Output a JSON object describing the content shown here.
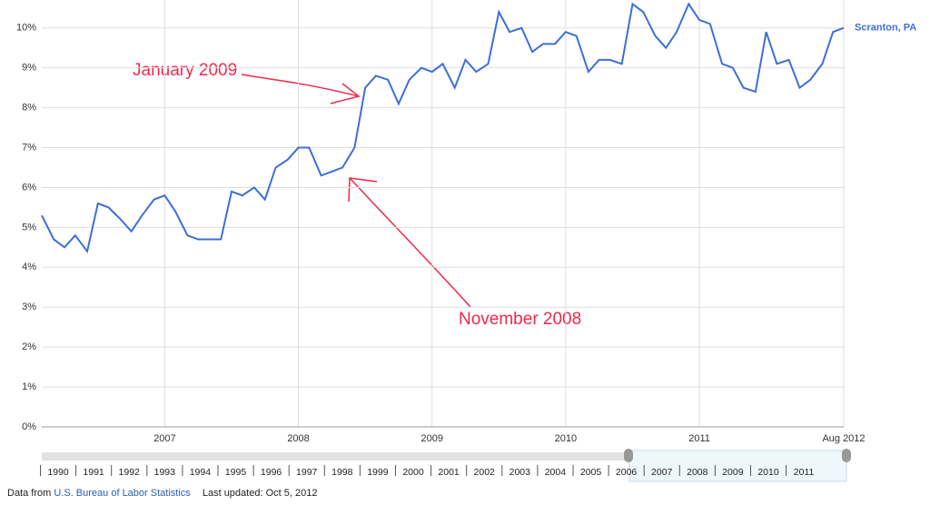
{
  "chart_data": {
    "type": "line",
    "x": [
      2006.08,
      2006.17,
      2006.25,
      2006.33,
      2006.42,
      2006.5,
      2006.58,
      2006.67,
      2006.75,
      2006.83,
      2006.92,
      2007,
      2007.08,
      2007.17,
      2007.25,
      2007.33,
      2007.42,
      2007.5,
      2007.58,
      2007.67,
      2007.75,
      2007.83,
      2007.92,
      2008,
      2008.08,
      2008.17,
      2008.25,
      2008.33,
      2008.42,
      2008.5,
      2008.58,
      2008.67,
      2008.75,
      2008.83,
      2008.92,
      2009,
      2009.08,
      2009.17,
      2009.25,
      2009.33,
      2009.42,
      2009.5,
      2009.58,
      2009.67,
      2009.75,
      2009.83,
      2009.92,
      2010,
      2010.08,
      2010.17,
      2010.25,
      2010.33,
      2010.42,
      2010.5,
      2010.58,
      2010.67,
      2010.75,
      2010.83,
      2010.92,
      2011,
      2011.08,
      2011.17,
      2011.25,
      2011.33,
      2011.42,
      2011.5,
      2011.58,
      2011.67,
      2011.75,
      2011.83,
      2011.92,
      2012,
      2012.08
    ],
    "series": [
      {
        "name": "Scranton, PA",
        "color": "#3d6fd6",
        "values": [
          5.3,
          4.7,
          4.5,
          4.8,
          4.4,
          5.6,
          5.5,
          5.2,
          4.9,
          5.3,
          5.7,
          5.8,
          5.4,
          4.8,
          4.7,
          4.7,
          4.7,
          5.9,
          5.8,
          6.0,
          5.7,
          6.5,
          6.7,
          7.0,
          7.0,
          6.3,
          6.4,
          6.5,
          7.0,
          8.5,
          8.8,
          8.7,
          8.1,
          8.7,
          9.0,
          8.9,
          9.1,
          8.5,
          9.2,
          8.9,
          9.1,
          10.4,
          9.9,
          10.0,
          9.4,
          9.6,
          9.6,
          9.9,
          9.8,
          8.9,
          9.2,
          9.2,
          9.1,
          10.6,
          10.4,
          9.8,
          9.5,
          9.9,
          10.6,
          10.2,
          10.1,
          9.1,
          9.0,
          8.5,
          8.4,
          9.9,
          9.1,
          9.2,
          8.5,
          8.7,
          9.1,
          9.9,
          10.0
        ]
      }
    ],
    "xlim": [
      2006.08,
      2012.08
    ],
    "xticks": [
      2007,
      2008,
      2009,
      2010,
      2011,
      {
        "value": 2012.08,
        "label": "Aug 2012"
      }
    ],
    "ylim": [
      0,
      10.7
    ],
    "yticks": [
      {
        "value": 0,
        "label": "0%"
      },
      {
        "value": 1,
        "label": "1%"
      },
      {
        "value": 2,
        "label": "2%"
      },
      {
        "value": 3,
        "label": "3%"
      },
      {
        "value": 4,
        "label": "4%"
      },
      {
        "value": 5,
        "label": "5%"
      },
      {
        "value": 6,
        "label": "6%"
      },
      {
        "value": 7,
        "label": "7%"
      },
      {
        "value": 8,
        "label": "8%"
      },
      {
        "value": 9,
        "label": "9%"
      },
      {
        "value": 10,
        "label": "10%"
      }
    ],
    "grid": true,
    "annotations": [
      "January 2009",
      "November 2008"
    ],
    "timeline_years": [
      "1990",
      "1991",
      "1992",
      "1993",
      "1994",
      "1995",
      "1996",
      "1997",
      "1998",
      "1999",
      "2000",
      "2001",
      "2002",
      "2003",
      "2004",
      "2005",
      "2006",
      "2007",
      "2008",
      "2009",
      "2010",
      "2011"
    ]
  },
  "footer": {
    "source_prefix": "Data from",
    "source_link": "U.S. Bureau of Labor Statistics",
    "updated": "Last updated: Oct 5, 2012"
  }
}
